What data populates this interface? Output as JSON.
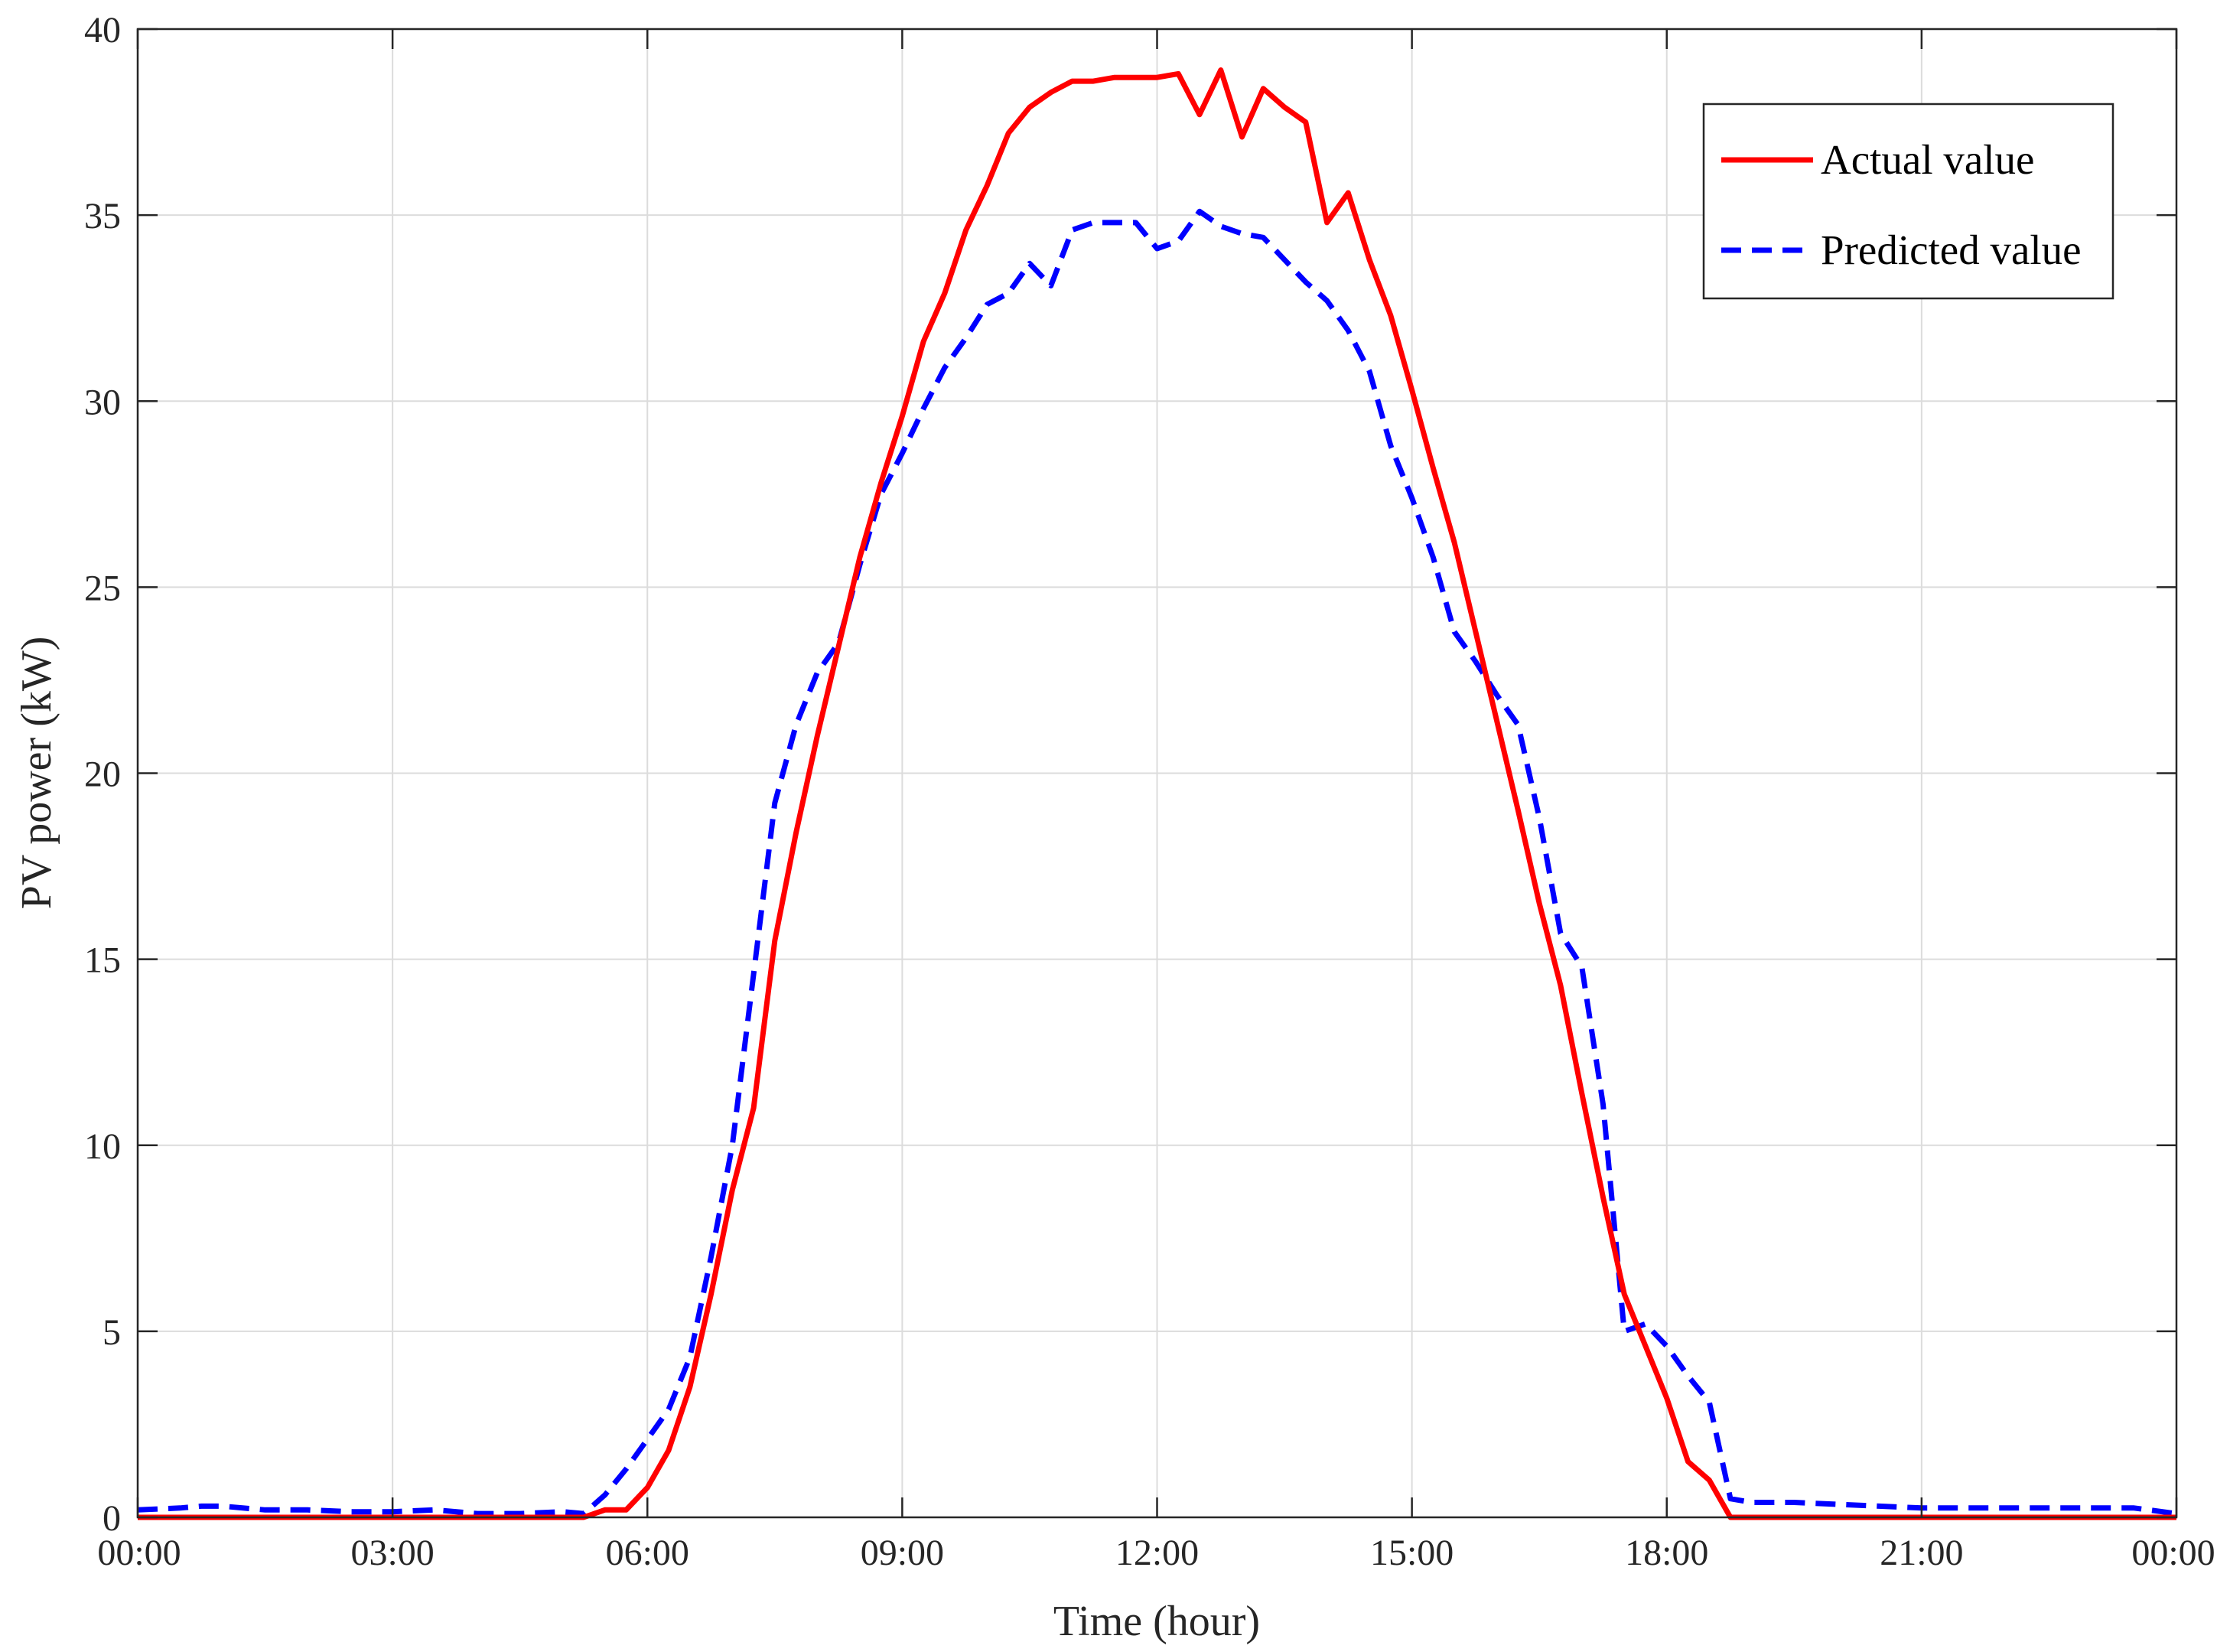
{
  "chart_data": {
    "type": "line",
    "title": "",
    "xlabel": "Time (hour)",
    "ylabel": "PV power (kW)",
    "xlim": [
      0,
      24
    ],
    "ylim": [
      0,
      40
    ],
    "x_ticks": [
      0,
      3,
      6,
      9,
      12,
      15,
      18,
      21,
      24
    ],
    "x_tick_labels": [
      "00:00",
      "03:00",
      "06:00",
      "09:00",
      "12:00",
      "15:00",
      "18:00",
      "21:00",
      "00:00"
    ],
    "y_ticks": [
      0,
      5,
      10,
      15,
      20,
      25,
      30,
      35,
      40
    ],
    "y_tick_labels": [
      "0",
      "5",
      "10",
      "15",
      "20",
      "25",
      "30",
      "35",
      "40"
    ],
    "grid": true,
    "legend_position": "top-right",
    "series": [
      {
        "name": "Actual value",
        "color": "#ff0000",
        "style": "solid",
        "points": [
          [
            0,
            0
          ],
          [
            1,
            0
          ],
          [
            2,
            0
          ],
          [
            3,
            0
          ],
          [
            4,
            0
          ],
          [
            5,
            0
          ],
          [
            5.25,
            0
          ],
          [
            5.5,
            0.2
          ],
          [
            5.75,
            0.2
          ],
          [
            6,
            0.8
          ],
          [
            6.25,
            1.8
          ],
          [
            6.5,
            3.5
          ],
          [
            6.75,
            6
          ],
          [
            7,
            8.8
          ],
          [
            7.25,
            11
          ],
          [
            7.5,
            15.5
          ],
          [
            7.75,
            18.4
          ],
          [
            8,
            21
          ],
          [
            8.25,
            23.4
          ],
          [
            8.5,
            25.8
          ],
          [
            8.75,
            27.8
          ],
          [
            9,
            29.6
          ],
          [
            9.25,
            31.6
          ],
          [
            9.5,
            32.9
          ],
          [
            9.75,
            34.6
          ],
          [
            10,
            35.8
          ],
          [
            10.25,
            37.2
          ],
          [
            10.5,
            37.9
          ],
          [
            10.75,
            38.3
          ],
          [
            11,
            38.6
          ],
          [
            11.25,
            38.6
          ],
          [
            11.5,
            38.7
          ],
          [
            11.75,
            38.7
          ],
          [
            12,
            38.7
          ],
          [
            12.25,
            38.8
          ],
          [
            12.5,
            37.7
          ],
          [
            12.75,
            38.9
          ],
          [
            13,
            37.1
          ],
          [
            13.25,
            38.4
          ],
          [
            13.5,
            37.9
          ],
          [
            13.75,
            37.5
          ],
          [
            14,
            34.8
          ],
          [
            14.25,
            35.6
          ],
          [
            14.5,
            33.8
          ],
          [
            14.75,
            32.3
          ],
          [
            15,
            30.3
          ],
          [
            15.25,
            28.2
          ],
          [
            15.5,
            26.2
          ],
          [
            15.75,
            23.8
          ],
          [
            16,
            21.4
          ],
          [
            16.25,
            19
          ],
          [
            16.5,
            16.5
          ],
          [
            16.75,
            14.3
          ],
          [
            17,
            11.4
          ],
          [
            17.25,
            8.6
          ],
          [
            17.5,
            6
          ],
          [
            17.75,
            4.6
          ],
          [
            18,
            3.2
          ],
          [
            18.25,
            1.5
          ],
          [
            18.5,
            1
          ],
          [
            18.75,
            0
          ],
          [
            19,
            0
          ],
          [
            20,
            0
          ],
          [
            21,
            0
          ],
          [
            22,
            0
          ],
          [
            23,
            0
          ],
          [
            24,
            0
          ]
        ]
      },
      {
        "name": "Predicted value",
        "color": "#0000ff",
        "style": "dashed",
        "points": [
          [
            0,
            0.2
          ],
          [
            0.5,
            0.25
          ],
          [
            0.75,
            0.3
          ],
          [
            1,
            0.3
          ],
          [
            1.5,
            0.2
          ],
          [
            2,
            0.2
          ],
          [
            2.5,
            0.15
          ],
          [
            3,
            0.15
          ],
          [
            3.5,
            0.2
          ],
          [
            4,
            0.1
          ],
          [
            4.5,
            0.1
          ],
          [
            5,
            0.15
          ],
          [
            5.25,
            0.1
          ],
          [
            5.5,
            0.6
          ],
          [
            5.75,
            1.3
          ],
          [
            6,
            2.1
          ],
          [
            6.25,
            2.9
          ],
          [
            6.5,
            4.3
          ],
          [
            6.75,
            7
          ],
          [
            7,
            10
          ],
          [
            7.25,
            14.6
          ],
          [
            7.5,
            19.2
          ],
          [
            7.75,
            21.3
          ],
          [
            8,
            22.7
          ],
          [
            8.25,
            23.5
          ],
          [
            8.5,
            25.6
          ],
          [
            8.75,
            27.5
          ],
          [
            9,
            28.6
          ],
          [
            9.25,
            29.8
          ],
          [
            9.5,
            30.9
          ],
          [
            9.75,
            31.7
          ],
          [
            10,
            32.6
          ],
          [
            10.25,
            32.9
          ],
          [
            10.5,
            33.7
          ],
          [
            10.75,
            33.1
          ],
          [
            11,
            34.6
          ],
          [
            11.25,
            34.8
          ],
          [
            11.5,
            34.8
          ],
          [
            11.75,
            34.8
          ],
          [
            12,
            34.1
          ],
          [
            12.25,
            34.3
          ],
          [
            12.5,
            35.1
          ],
          [
            12.75,
            34.7
          ],
          [
            13,
            34.5
          ],
          [
            13.25,
            34.4
          ],
          [
            13.5,
            33.8
          ],
          [
            13.75,
            33.2
          ],
          [
            14,
            32.7
          ],
          [
            14.25,
            31.9
          ],
          [
            14.5,
            30.8
          ],
          [
            14.75,
            28.8
          ],
          [
            15,
            27.4
          ],
          [
            15.25,
            25.8
          ],
          [
            15.5,
            23.8
          ],
          [
            15.75,
            23
          ],
          [
            16,
            22.1
          ],
          [
            16.25,
            21.3
          ],
          [
            16.5,
            18.8
          ],
          [
            16.75,
            15.7
          ],
          [
            17,
            14.8
          ],
          [
            17.25,
            11.1
          ],
          [
            17.5,
            5
          ],
          [
            17.75,
            5.2
          ],
          [
            18,
            4.6
          ],
          [
            18.25,
            3.8
          ],
          [
            18.5,
            3.1
          ],
          [
            18.75,
            0.5
          ],
          [
            19,
            0.4
          ],
          [
            19.5,
            0.4
          ],
          [
            20,
            0.35
          ],
          [
            20.5,
            0.3
          ],
          [
            21,
            0.25
          ],
          [
            21.5,
            0.25
          ],
          [
            22,
            0.25
          ],
          [
            22.5,
            0.25
          ],
          [
            23,
            0.25
          ],
          [
            23.5,
            0.25
          ],
          [
            24,
            0.1
          ]
        ]
      }
    ]
  }
}
